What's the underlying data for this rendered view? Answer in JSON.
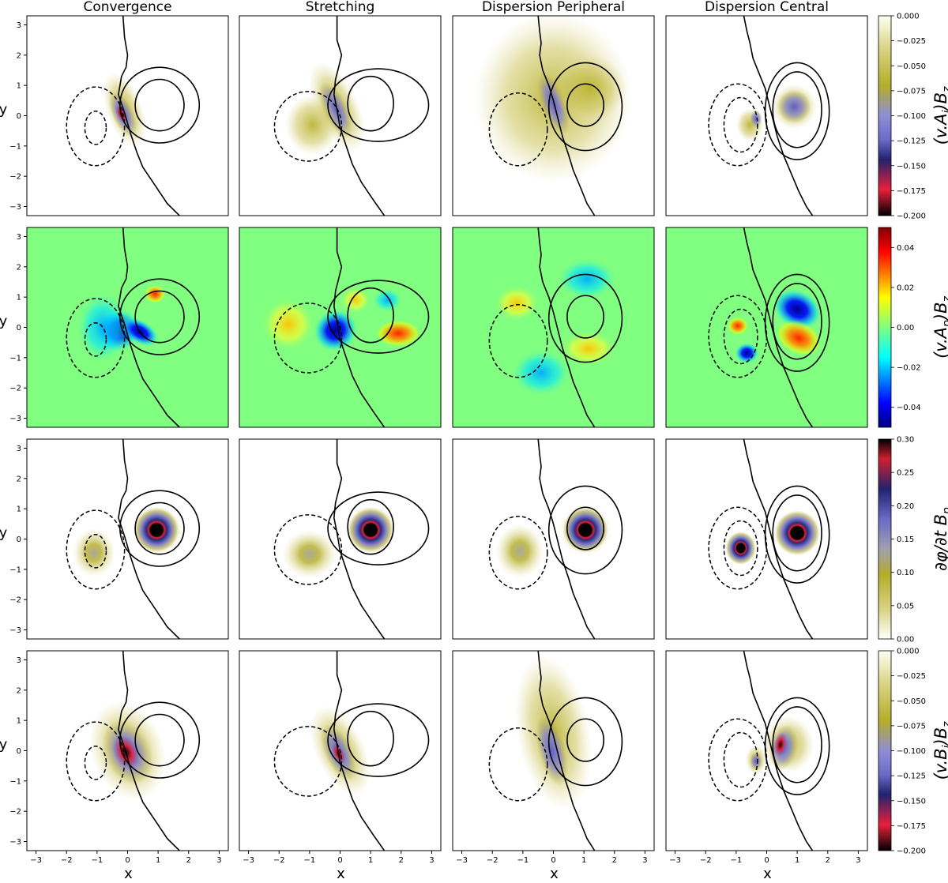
{
  "chart_data": {
    "type": "heatmap",
    "title": "",
    "columns": [
      "Convergence",
      "Stretching",
      "Dispersion Peripheral",
      "Dispersion Central"
    ],
    "xlabel": "x",
    "ylabel": "y",
    "xlim": [
      -3.3,
      3.3
    ],
    "ylim": [
      -3.3,
      3.3
    ],
    "xticks": [
      -3,
      -2,
      -1,
      0,
      1,
      2,
      3
    ],
    "yticks": [
      -3,
      -2,
      -1,
      0,
      1,
      2,
      3
    ],
    "rows": [
      {
        "colorbar_label_main": "(v.A",
        "colorbar_label_sub": "j",
        "colorbar_label_tail": ")B",
        "colorbar_label_sub2": "z",
        "colormap": "olive-blue-red-black (reversed)",
        "vmin": -0.2,
        "vmax": 0.0,
        "colorbar_ticks": [
          "0.000",
          "-0.025",
          "-0.050",
          "-0.075",
          "-0.100",
          "-0.125",
          "-0.150",
          "-0.175",
          "-0.200"
        ]
      },
      {
        "colorbar_label_main": "(v.A",
        "colorbar_label_sub": "p",
        "colorbar_label_tail": ")B",
        "colorbar_label_sub2": "z",
        "colormap": "jet",
        "vmin": -0.05,
        "vmax": 0.05,
        "colorbar_ticks": [
          "0.04",
          "0.02",
          "0.00",
          "-0.02",
          "-0.04"
        ]
      },
      {
        "colorbar_label_main": "∂φ/∂t B",
        "colorbar_label_sub": "p",
        "colorbar_label_tail": "",
        "colorbar_label_sub2": "",
        "colormap": "white-olive-blue-red-black",
        "vmin": 0.0,
        "vmax": 0.3,
        "colorbar_ticks": [
          "0.30",
          "0.25",
          "0.20",
          "0.15",
          "0.10",
          "0.05",
          "0.00"
        ]
      },
      {
        "colorbar_label_main": "(v.B",
        "colorbar_label_sub": "j",
        "colorbar_label_tail": ")B",
        "colorbar_label_sub2": "z",
        "colormap": "olive-blue-red-black (reversed)",
        "vmin": -0.2,
        "vmax": 0.0,
        "colorbar_ticks": [
          "0.000",
          "-0.025",
          "-0.050",
          "-0.075",
          "-0.100",
          "-0.125",
          "-0.150",
          "-0.175",
          "-0.200"
        ]
      }
    ],
    "contours": "Solid contours mark a positive structure centred near (1, 0.4); dashed contours a negative structure near (-1, -0.4); a solid line marks the boundary between them."
  }
}
